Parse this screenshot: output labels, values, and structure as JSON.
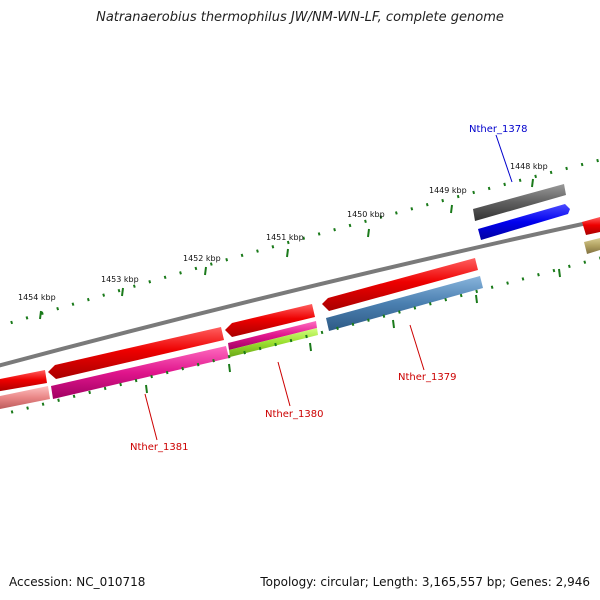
{
  "title": "Natranaerobius thermophilus JW/NM-WN-LF, complete genome",
  "footer": {
    "accession": "Accession: NC_010718",
    "topology": "Topology: circular; Length: 3,165,557 bp; Genes: 2,946"
  },
  "kbp_labels": [
    "1448 kbp",
    "1449 kbp",
    "1450 kbp",
    "1451 kbp",
    "1452 kbp",
    "1453 kbp",
    "1454 kbp"
  ],
  "gene_labels": [
    {
      "text": "Nther_1378",
      "color": "#0000cc"
    },
    {
      "text": "Nther_1379",
      "color": "#cc0000"
    },
    {
      "text": "Nther_1380",
      "color": "#cc0000"
    },
    {
      "text": "Nther_1381",
      "color": "#cc0000"
    }
  ],
  "colors": {
    "backbone": "#7f7f7f",
    "tick": "#1a7a1a",
    "red": "#e60000",
    "gray": "#5f5f5f",
    "blue": "#0000ee",
    "steel": "#4a7fb0",
    "magenta": "#e0158c",
    "lime": "#9be030",
    "salmon": "#e88585",
    "olive": "#b0a060"
  }
}
